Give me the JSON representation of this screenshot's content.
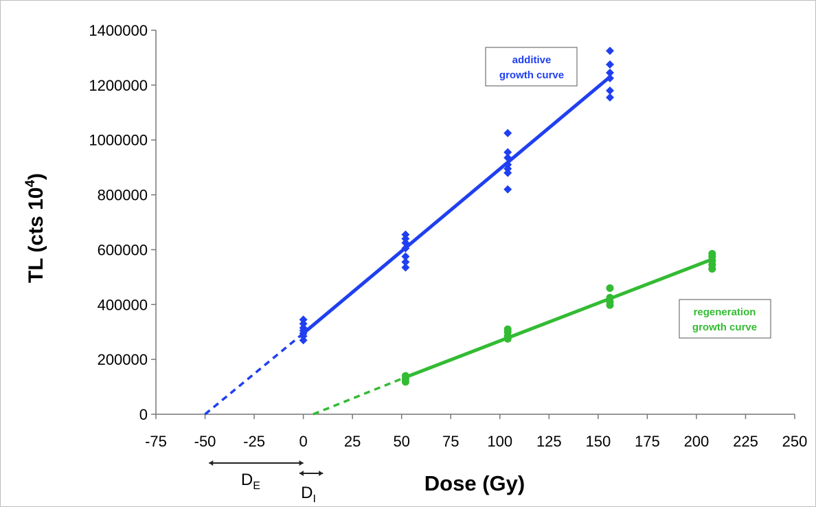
{
  "chart_data": {
    "type": "scatter",
    "xlabel": "Dose (Gy)",
    "ylabel_main": "TL (cts 10",
    "ylabel_sup": "4",
    "ylabel_close": ")",
    "xlim": [
      -75,
      250
    ],
    "ylim": [
      0,
      1400000
    ],
    "xticks": [
      -75,
      -50,
      -25,
      0,
      25,
      50,
      75,
      100,
      125,
      150,
      175,
      200,
      225,
      250
    ],
    "xtick_labels": [
      "-75",
      "-50",
      "-25",
      "0",
      "25",
      "50",
      "75",
      "100",
      "125",
      "150",
      "175",
      "200",
      "225",
      "250"
    ],
    "yticks": [
      0,
      200000,
      400000,
      600000,
      800000,
      1000000,
      1200000,
      1400000
    ],
    "ytick_labels": [
      "0",
      "200000",
      "400000",
      "600000",
      "800000",
      "1000000",
      "1200000",
      "1400000"
    ],
    "grid": false,
    "series": [
      {
        "name_line1": "additive",
        "name_line2": "growth curve",
        "color": "#1f3ff0",
        "marker": "diamond",
        "points": [
          {
            "x": 0,
            "y": 270000
          },
          {
            "x": 0,
            "y": 285000
          },
          {
            "x": 0,
            "y": 295000
          },
          {
            "x": 0,
            "y": 305000
          },
          {
            "x": 0,
            "y": 315000
          },
          {
            "x": 0,
            "y": 330000
          },
          {
            "x": 0,
            "y": 345000
          },
          {
            "x": 52,
            "y": 535000
          },
          {
            "x": 52,
            "y": 555000
          },
          {
            "x": 52,
            "y": 575000
          },
          {
            "x": 52,
            "y": 605000
          },
          {
            "x": 52,
            "y": 625000
          },
          {
            "x": 52,
            "y": 640000
          },
          {
            "x": 52,
            "y": 655000
          },
          {
            "x": 104,
            "y": 820000
          },
          {
            "x": 104,
            "y": 880000
          },
          {
            "x": 104,
            "y": 895000
          },
          {
            "x": 104,
            "y": 910000
          },
          {
            "x": 104,
            "y": 935000
          },
          {
            "x": 104,
            "y": 955000
          },
          {
            "x": 104,
            "y": 1025000
          },
          {
            "x": 156,
            "y": 1155000
          },
          {
            "x": 156,
            "y": 1180000
          },
          {
            "x": 156,
            "y": 1225000
          },
          {
            "x": 156,
            "y": 1245000
          },
          {
            "x": 156,
            "y": 1275000
          },
          {
            "x": 156,
            "y": 1325000
          }
        ],
        "fit_solid": [
          [
            0,
            295000
          ],
          [
            156,
            1230000
          ]
        ],
        "fit_dashed": [
          [
            -50,
            0
          ],
          [
            0,
            295000
          ]
        ]
      },
      {
        "name_line1": "regeneration",
        "name_line2": "growth curve",
        "color": "#33bb33",
        "marker": "circle",
        "points": [
          {
            "x": 52,
            "y": 118000
          },
          {
            "x": 52,
            "y": 128000
          },
          {
            "x": 52,
            "y": 140000
          },
          {
            "x": 104,
            "y": 275000
          },
          {
            "x": 104,
            "y": 285000
          },
          {
            "x": 104,
            "y": 300000
          },
          {
            "x": 104,
            "y": 310000
          },
          {
            "x": 156,
            "y": 398000
          },
          {
            "x": 156,
            "y": 410000
          },
          {
            "x": 156,
            "y": 425000
          },
          {
            "x": 156,
            "y": 460000
          },
          {
            "x": 208,
            "y": 530000
          },
          {
            "x": 208,
            "y": 545000
          },
          {
            "x": 208,
            "y": 560000
          },
          {
            "x": 208,
            "y": 575000
          },
          {
            "x": 208,
            "y": 585000
          }
        ],
        "fit_solid": [
          [
            52,
            135000
          ],
          [
            208,
            565000
          ]
        ],
        "fit_dashed": [
          [
            5,
            0
          ],
          [
            52,
            135000
          ]
        ]
      }
    ],
    "annotations": {
      "de_main": "D",
      "de_sub": "E",
      "de_range": [
        -48,
        0
      ],
      "di_main": "D",
      "di_sub": "I",
      "di_range": [
        -2,
        10
      ]
    }
  }
}
